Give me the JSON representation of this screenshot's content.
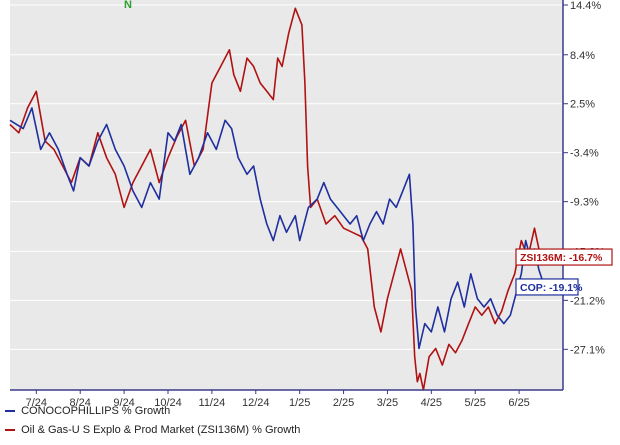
{
  "chart_data": {
    "type": "line",
    "title": "",
    "xlabel": "",
    "ylabel": "",
    "ylim": [
      -32,
      15
    ],
    "grid": true,
    "legend_placement": "bottom-left",
    "x_ticks": [
      "7/24",
      "8/24",
      "9/24",
      "10/24",
      "11/24",
      "12/24",
      "1/25",
      "2/25",
      "3/25",
      "4/25",
      "5/25",
      "6/25"
    ],
    "x_tick_positions": [
      0.6,
      1.6,
      2.6,
      3.6,
      4.6,
      5.6,
      6.6,
      7.6,
      8.6,
      9.6,
      10.6,
      11.6
    ],
    "xlim": [
      0,
      12.6
    ],
    "y_ticks": [
      14.4,
      8.4,
      2.5,
      -3.4,
      -9.3,
      -15.3,
      -21.2,
      -27.1
    ],
    "y_tick_labels": [
      "14.4%",
      "8.4%",
      "2.5%",
      "-3.4%",
      "-9.3%",
      "-15.3%",
      "-21.2%",
      "-27.1%"
    ],
    "top_marker": "N",
    "series": [
      {
        "name": "CONOCOPHILLIPS % Growth",
        "color": "#1f2f9e",
        "end_tag": "COP: -19.1%",
        "points": [
          [
            0.0,
            0.5
          ],
          [
            0.3,
            -0.5
          ],
          [
            0.5,
            2.0
          ],
          [
            0.7,
            -3.0
          ],
          [
            0.9,
            -1.0
          ],
          [
            1.1,
            -3.0
          ],
          [
            1.3,
            -6.0
          ],
          [
            1.45,
            -8.0
          ],
          [
            1.6,
            -4.0
          ],
          [
            1.8,
            -5.0
          ],
          [
            2.0,
            -2.0
          ],
          [
            2.2,
            0.0
          ],
          [
            2.4,
            -3.0
          ],
          [
            2.6,
            -5.0
          ],
          [
            2.8,
            -8.0
          ],
          [
            3.0,
            -10.0
          ],
          [
            3.2,
            -7.0
          ],
          [
            3.4,
            -9.0
          ],
          [
            3.6,
            -1.0
          ],
          [
            3.75,
            -2.0
          ],
          [
            3.9,
            0.0
          ],
          [
            4.1,
            -6.0
          ],
          [
            4.3,
            -4.0
          ],
          [
            4.5,
            -1.0
          ],
          [
            4.7,
            -3.0
          ],
          [
            4.9,
            0.5
          ],
          [
            5.05,
            -0.5
          ],
          [
            5.2,
            -4.0
          ],
          [
            5.4,
            -6.0
          ],
          [
            5.55,
            -5.0
          ],
          [
            5.7,
            -9.0
          ],
          [
            5.85,
            -12.0
          ],
          [
            6.0,
            -14.0
          ],
          [
            6.15,
            -11.0
          ],
          [
            6.3,
            -13.0
          ],
          [
            6.5,
            -11.0
          ],
          [
            6.6,
            -14.0
          ],
          [
            6.8,
            -10.0
          ],
          [
            7.0,
            -9.0
          ],
          [
            7.15,
            -7.0
          ],
          [
            7.3,
            -9.0
          ],
          [
            7.45,
            -10.0
          ],
          [
            7.6,
            -11.0
          ],
          [
            7.75,
            -12.0
          ],
          [
            7.9,
            -11.0
          ],
          [
            8.05,
            -14.0
          ],
          [
            8.2,
            -12.0
          ],
          [
            8.35,
            -10.5
          ],
          [
            8.5,
            -12.0
          ],
          [
            8.65,
            -9.0
          ],
          [
            8.8,
            -10.0
          ],
          [
            8.95,
            -8.0
          ],
          [
            9.1,
            -6.0
          ],
          [
            9.18,
            -12.0
          ],
          [
            9.24,
            -22.0
          ],
          [
            9.32,
            -27.0
          ],
          [
            9.45,
            -24.0
          ],
          [
            9.6,
            -25.0
          ],
          [
            9.75,
            -22.0
          ],
          [
            9.9,
            -25.0
          ],
          [
            10.05,
            -21.0
          ],
          [
            10.2,
            -19.0
          ],
          [
            10.35,
            -22.0
          ],
          [
            10.5,
            -18.0
          ],
          [
            10.65,
            -21.0
          ],
          [
            10.8,
            -22.0
          ],
          [
            10.95,
            -21.0
          ],
          [
            11.1,
            -23.0
          ],
          [
            11.25,
            -24.0
          ],
          [
            11.4,
            -23.0
          ],
          [
            11.55,
            -20.0
          ],
          [
            11.65,
            -18.0
          ],
          [
            11.75,
            -14.0
          ],
          [
            11.85,
            -16.0
          ],
          [
            11.95,
            -15.0
          ],
          [
            12.05,
            -17.5
          ],
          [
            12.15,
            -19.1
          ]
        ]
      },
      {
        "name": "Oil & Gas-U S Explo & Prod Market (ZSI136M) % Growth",
        "color": "#b01212",
        "end_tag": "ZSI136M: -16.7%",
        "points": [
          [
            0.0,
            0.0
          ],
          [
            0.2,
            -1.0
          ],
          [
            0.4,
            2.0
          ],
          [
            0.6,
            4.0
          ],
          [
            0.8,
            -2.0
          ],
          [
            1.0,
            -3.0
          ],
          [
            1.2,
            -5.0
          ],
          [
            1.4,
            -7.0
          ],
          [
            1.6,
            -4.0
          ],
          [
            1.8,
            -5.0
          ],
          [
            2.0,
            -1.0
          ],
          [
            2.2,
            -4.0
          ],
          [
            2.4,
            -6.0
          ],
          [
            2.6,
            -10.0
          ],
          [
            2.8,
            -7.0
          ],
          [
            3.0,
            -5.0
          ],
          [
            3.2,
            -3.0
          ],
          [
            3.4,
            -7.0
          ],
          [
            3.6,
            -4.0
          ],
          [
            3.8,
            -1.5
          ],
          [
            4.0,
            0.5
          ],
          [
            4.2,
            -5.0
          ],
          [
            4.4,
            -3.0
          ],
          [
            4.6,
            5.0
          ],
          [
            4.8,
            7.0
          ],
          [
            5.0,
            9.0
          ],
          [
            5.1,
            6.0
          ],
          [
            5.25,
            4.0
          ],
          [
            5.4,
            8.0
          ],
          [
            5.55,
            7.0
          ],
          [
            5.7,
            5.0
          ],
          [
            5.85,
            4.0
          ],
          [
            6.0,
            3.0
          ],
          [
            6.1,
            8.0
          ],
          [
            6.2,
            7.0
          ],
          [
            6.35,
            11.0
          ],
          [
            6.5,
            14.0
          ],
          [
            6.65,
            12.0
          ],
          [
            6.72,
            5.0
          ],
          [
            6.78,
            -5.0
          ],
          [
            6.85,
            -10.0
          ],
          [
            7.0,
            -9.0
          ],
          [
            7.2,
            -12.0
          ],
          [
            7.4,
            -11.0
          ],
          [
            7.6,
            -12.5
          ],
          [
            7.8,
            -13.0
          ],
          [
            8.0,
            -13.5
          ],
          [
            8.15,
            -15.0
          ],
          [
            8.3,
            -22.0
          ],
          [
            8.45,
            -25.0
          ],
          [
            8.6,
            -21.0
          ],
          [
            8.75,
            -18.0
          ],
          [
            8.9,
            -15.0
          ],
          [
            9.05,
            -18.0
          ],
          [
            9.15,
            -20.0
          ],
          [
            9.22,
            -28.0
          ],
          [
            9.28,
            -31.0
          ],
          [
            9.34,
            -30.0
          ],
          [
            9.42,
            -32.0
          ],
          [
            9.55,
            -28.0
          ],
          [
            9.7,
            -27.0
          ],
          [
            9.85,
            -29.0
          ],
          [
            10.0,
            -26.5
          ],
          [
            10.15,
            -27.5
          ],
          [
            10.3,
            -26.0
          ],
          [
            10.45,
            -24.0
          ],
          [
            10.6,
            -22.0
          ],
          [
            10.75,
            -23.0
          ],
          [
            10.9,
            -22.0
          ],
          [
            11.05,
            -24.0
          ],
          [
            11.2,
            -22.5
          ],
          [
            11.35,
            -20.0
          ],
          [
            11.5,
            -18.0
          ],
          [
            11.65,
            -14.0
          ],
          [
            11.8,
            -16.0
          ],
          [
            11.95,
            -12.5
          ],
          [
            12.05,
            -15.0
          ],
          [
            12.15,
            -16.7
          ]
        ]
      }
    ]
  }
}
